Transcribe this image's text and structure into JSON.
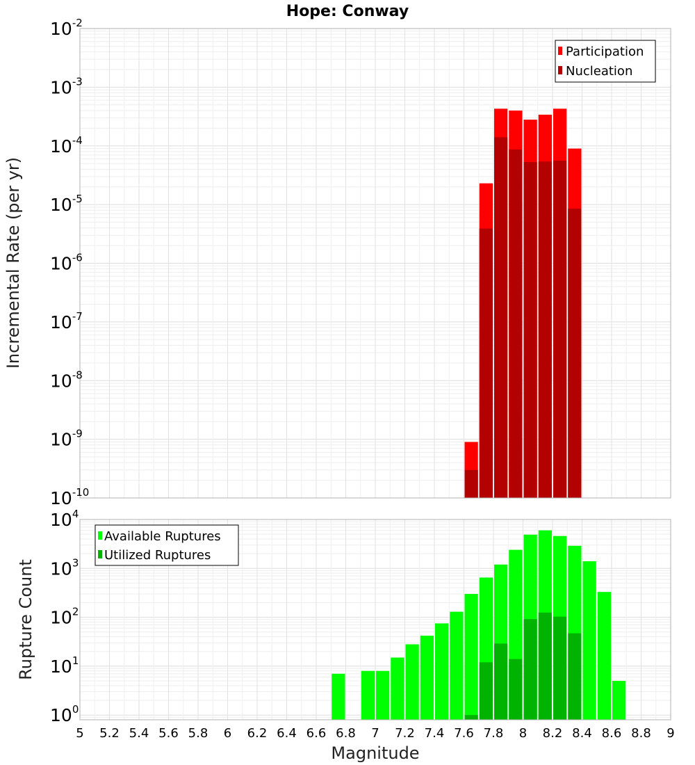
{
  "chart_title": "Hope: Conway",
  "chart_data": [
    {
      "type": "bar",
      "id": "rates",
      "title": "Hope: Conway",
      "xlabel": "",
      "ylabel": "Incremental Rate (per yr)",
      "xlim": [
        5,
        9
      ],
      "ylim": [
        1e-10,
        0.01
      ],
      "y_scale": "log",
      "y_tick_exponents": [
        "-10",
        "-9",
        "-8",
        "-7",
        "-6",
        "-5",
        "-4",
        "-3",
        "-2"
      ],
      "bar_width": 0.1,
      "grid": true,
      "legend_position": "top-right",
      "x": [
        7.65,
        7.75,
        7.85,
        7.95,
        8.05,
        8.15,
        8.25,
        8.35
      ],
      "series": [
        {
          "name": "Participation",
          "color": "#ff0000",
          "values": [
            9e-10,
            2.3e-05,
            0.00043,
            0.0004,
            0.00028,
            0.00034,
            0.00043,
            9e-05
          ]
        },
        {
          "name": "Nucleation",
          "color": "#b30000",
          "values": [
            3e-10,
            3.9e-06,
            0.00014,
            8.7e-05,
            5.3e-05,
            5.4e-05,
            5.6e-05,
            8.5e-06
          ]
        }
      ]
    },
    {
      "type": "bar",
      "id": "counts",
      "title": "",
      "xlabel": "Magnitude",
      "ylabel": "Rupture Count",
      "xlim": [
        5,
        9
      ],
      "ylim": [
        0.8,
        10000.0
      ],
      "y_scale": "log",
      "y_tick_exponents": [
        "0",
        "1",
        "2",
        "3",
        "4"
      ],
      "bar_width": 0.1,
      "grid": true,
      "legend_position": "top-left",
      "x_ticks": [
        "5",
        "5.2",
        "5.4",
        "5.6",
        "5.8",
        "6",
        "6.2",
        "6.4",
        "6.6",
        "6.8",
        "7",
        "7.2",
        "7.4",
        "7.6",
        "7.8",
        "8",
        "8.2",
        "8.4",
        "8.6",
        "8.8",
        "9"
      ],
      "series": [
        {
          "name": "Available Ruptures",
          "color": "#00ff00",
          "x": [
            6.75,
            6.95,
            7.05,
            7.15,
            7.25,
            7.35,
            7.45,
            7.55,
            7.65,
            7.75,
            7.85,
            7.95,
            8.05,
            8.15,
            8.25,
            8.35,
            8.45,
            8.55,
            8.65
          ],
          "values": [
            7,
            8,
            8,
            15,
            28,
            42,
            75,
            130,
            300,
            650,
            1200,
            2400,
            4900,
            6000,
            4600,
            2900,
            1400,
            330,
            5
          ]
        },
        {
          "name": "Utilized Ruptures",
          "color": "#00b300",
          "x": [
            7.65,
            7.75,
            7.85,
            7.95,
            8.05,
            8.15,
            8.25,
            8.35
          ],
          "values": [
            1,
            12,
            29,
            14,
            92,
            125,
            103,
            47
          ]
        }
      ]
    }
  ]
}
